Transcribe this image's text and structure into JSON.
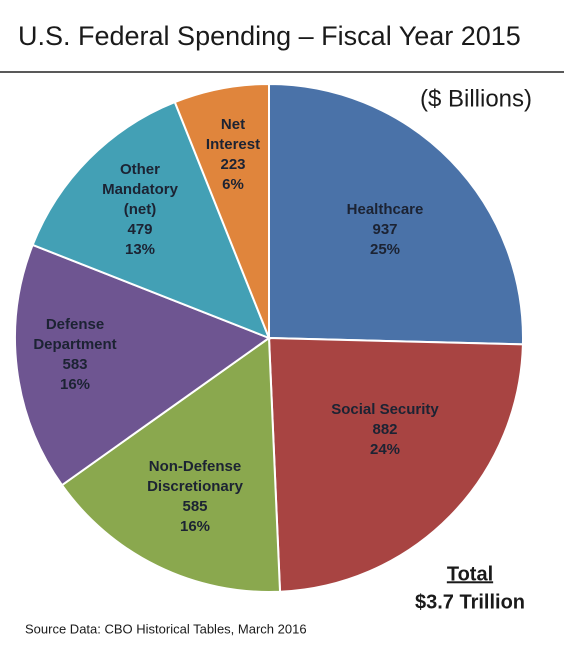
{
  "chart_data": {
    "type": "pie",
    "title": "U.S. Federal Spending – Fiscal Year 2015",
    "subtitle": "($ Billions)",
    "categories": [
      [
        "Healthcare"
      ],
      [
        "Social Security"
      ],
      [
        "Non-Defense",
        "Discretionary"
      ],
      [
        "Defense",
        "Department"
      ],
      [
        "Other",
        "Mandatory",
        "(net)"
      ],
      [
        "Net",
        "Interest"
      ]
    ],
    "values": [
      937,
      882,
      585,
      583,
      479,
      223
    ],
    "value_labels_percent": [
      "25%",
      "24%",
      "16%",
      "16%",
      "13%",
      "6%"
    ],
    "colors": [
      "#4a72a8",
      "#a84442",
      "#8aa84e",
      "#6e5591",
      "#43a0b5",
      "#e0853c"
    ],
    "total_label": "Total",
    "total_value": "$3.7 Trillion",
    "source": "Source Data:  CBO Historical Tables, March 2016"
  }
}
